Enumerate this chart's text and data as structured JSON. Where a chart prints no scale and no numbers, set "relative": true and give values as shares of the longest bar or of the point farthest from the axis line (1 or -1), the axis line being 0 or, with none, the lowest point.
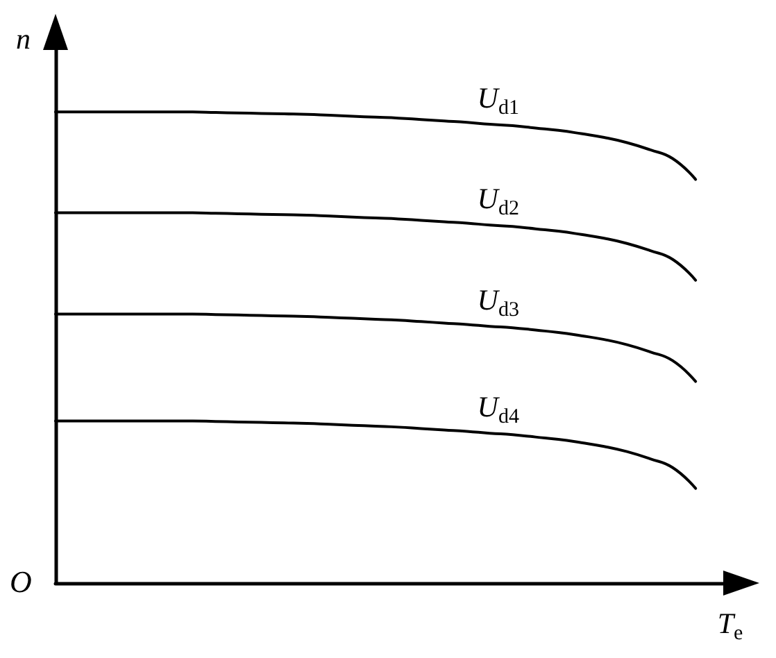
{
  "chart_data": {
    "type": "line",
    "relative": true,
    "xlabel": "T$_{e}$",
    "ylabel": "n",
    "annotations": [
      "O"
    ],
    "categories": [
      null,
      null,
      null,
      null,
      null,
      null,
      null,
      null,
      null,
      null,
      null,
      null,
      null,
      null,
      null,
      null,
      null,
      null,
      null,
      null,
      null,
      null,
      null,
      null,
      null,
      null,
      null,
      null,
      null,
      null,
      null
    ],
    "series": [
      {
        "name": "U$_{d1}$",
        "color": "#000000",
        "values": [
          1,
          1,
          1,
          1,
          1,
          1,
          1,
          0.999,
          0.998,
          0.997,
          0.996,
          0.995,
          0.993,
          0.991,
          0.989,
          0.987,
          0.984,
          0.981,
          0.978,
          0.974,
          0.971,
          0.966,
          0.961,
          0.954,
          0.946,
          0.935,
          0.92,
          0.901,
          0.857,
          null,
          null
        ]
      },
      {
        "name": "U$_{d2}$",
        "color": "#000000",
        "values": [
          0.786,
          0.786,
          0.786,
          0.786,
          0.786,
          0.786,
          0.786,
          0.785,
          0.784,
          0.783,
          0.782,
          0.781,
          0.779,
          0.777,
          0.775,
          0.773,
          0.77,
          0.767,
          0.764,
          0.76,
          0.757,
          0.752,
          0.747,
          0.74,
          0.732,
          0.721,
          0.706,
          0.687,
          0.643,
          null,
          null
        ]
      },
      {
        "name": "U$_{d3}$",
        "color": "#000000",
        "values": [
          0.571,
          0.571,
          0.571,
          0.571,
          0.571,
          0.571,
          0.571,
          0.57,
          0.569,
          0.568,
          0.567,
          0.566,
          0.564,
          0.562,
          0.56,
          0.558,
          0.555,
          0.552,
          0.549,
          0.545,
          0.542,
          0.537,
          0.532,
          0.525,
          0.517,
          0.506,
          0.491,
          0.472,
          0.428,
          null,
          null
        ]
      },
      {
        "name": "U$_{d4}$",
        "color": "#000000",
        "values": [
          0.344,
          0.344,
          0.344,
          0.344,
          0.344,
          0.344,
          0.344,
          0.343,
          0.342,
          0.341,
          0.34,
          0.339,
          0.337,
          0.335,
          0.333,
          0.331,
          0.328,
          0.325,
          0.322,
          0.318,
          0.315,
          0.31,
          0.305,
          0.298,
          0.29,
          0.279,
          0.264,
          0.245,
          0.201,
          null,
          null
        ]
      }
    ],
    "legend": false,
    "marker": "none",
    "line_style": "solid"
  }
}
